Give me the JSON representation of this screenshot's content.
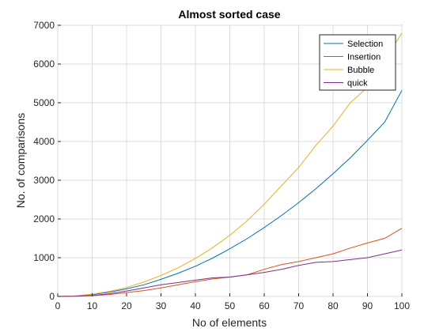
{
  "chart_data": {
    "type": "line",
    "title": "Almost sorted case",
    "xlabel": "No of elements",
    "ylabel": "No. of comparisons",
    "xlim": [
      0,
      100
    ],
    "ylim": [
      0,
      7000
    ],
    "xticks": [
      0,
      10,
      20,
      30,
      40,
      50,
      60,
      70,
      80,
      90,
      100
    ],
    "yticks": [
      0,
      1000,
      2000,
      3000,
      4000,
      5000,
      6000,
      7000
    ],
    "grid": true,
    "legend_position": "top-right",
    "x": [
      0,
      5,
      10,
      15,
      20,
      25,
      30,
      35,
      40,
      45,
      50,
      55,
      60,
      65,
      70,
      75,
      80,
      85,
      90,
      95,
      100
    ],
    "series": [
      {
        "name": "Selection",
        "color": "#0072BD",
        "values": [
          0,
          12,
          50,
          110,
          195,
          300,
          440,
          600,
          780,
          990,
          1230,
          1490,
          1780,
          2090,
          2420,
          2780,
          3170,
          3580,
          4030,
          4500,
          5320
        ]
      },
      {
        "name": "Insertion",
        "color": "#D95319",
        "values": [
          0,
          5,
          20,
          50,
          100,
          150,
          220,
          300,
          380,
          450,
          500,
          560,
          700,
          820,
          900,
          1000,
          1100,
          1250,
          1380,
          1500,
          1760
        ]
      },
      {
        "name": "Bubble",
        "color": "#EDB120",
        "values": [
          0,
          15,
          60,
          130,
          230,
          370,
          540,
          740,
          980,
          1260,
          1580,
          1950,
          2380,
          2860,
          3330,
          3900,
          4400,
          5000,
          5400,
          6100,
          6800
        ]
      },
      {
        "name": "quick",
        "color": "#7E2F8E",
        "values": [
          0,
          5,
          25,
          70,
          140,
          220,
          300,
          360,
          420,
          480,
          500,
          560,
          620,
          700,
          800,
          880,
          900,
          950,
          1000,
          1100,
          1200
        ]
      }
    ]
  }
}
